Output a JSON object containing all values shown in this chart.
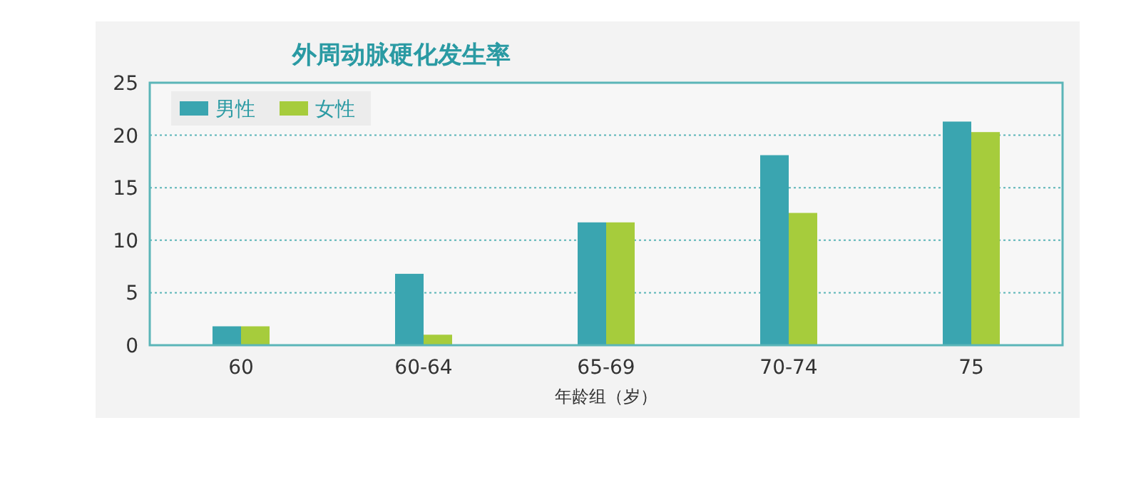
{
  "chart_data": {
    "type": "bar",
    "title": "外周动脉硬化发生率",
    "xlabel": "年龄组（岁）",
    "categories": [
      "60",
      "60-64",
      "65-69",
      "70-74",
      "75"
    ],
    "series": [
      {
        "name": "男性",
        "color": "#3aa5b0",
        "values": [
          1.8,
          6.8,
          11.7,
          18.1,
          21.3
        ]
      },
      {
        "name": "女性",
        "color": "#a6cc3c",
        "values": [
          1.8,
          1.0,
          11.7,
          12.6,
          20.3
        ]
      }
    ],
    "ylim": [
      0,
      25
    ],
    "yticks": [
      0,
      5,
      10,
      15,
      20,
      25
    ],
    "grid": "y",
    "legend": "top left"
  }
}
